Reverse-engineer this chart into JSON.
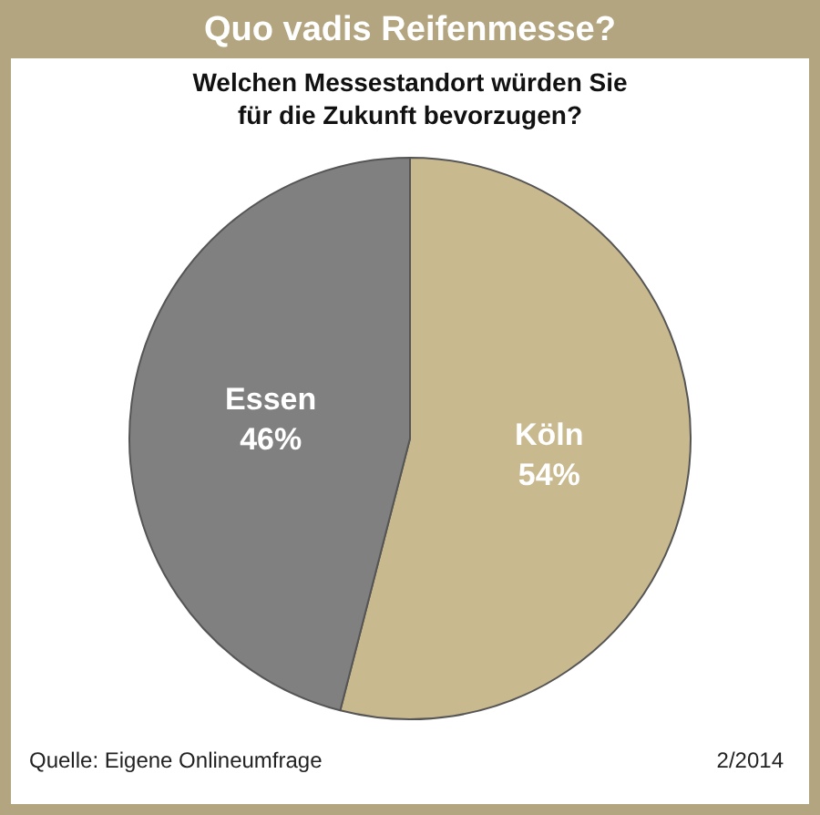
{
  "chart_data": {
    "type": "pie",
    "title": "Quo vadis Reifenmesse?",
    "subtitle": "Welchen Messestandort würden Sie\nfür die Zukunft bevorzugen?",
    "categories": [
      "Köln",
      "Essen"
    ],
    "values": [
      54,
      46
    ],
    "colors": [
      "#c9b98f",
      "#808080"
    ],
    "value_labels": [
      "54%",
      "46%"
    ],
    "legend": false,
    "annotations": [
      "Quelle: Eigene Onlineumfrage",
      "2/2014"
    ]
  }
}
